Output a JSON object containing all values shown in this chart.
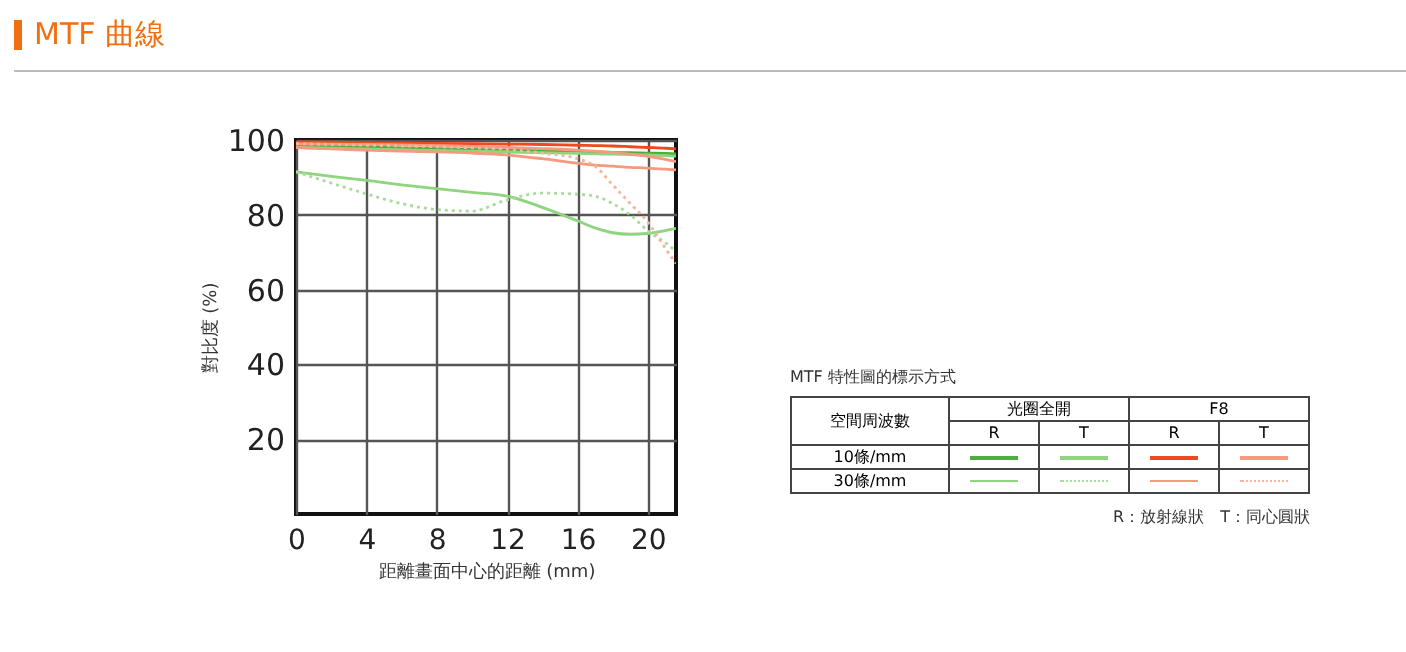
{
  "chart_data": {
    "type": "line",
    "title": "MTF 曲線",
    "xlabel": "距離畫面中心的距離 (mm)",
    "ylabel": "對比度 (%)",
    "x": [
      0,
      2,
      4,
      6,
      8,
      10,
      12,
      14,
      16,
      17,
      18,
      19,
      20,
      21,
      21.6
    ],
    "series": [
      {
        "color": "#4cae3c",
        "line_style": "solid",
        "values": [
          98.5,
          98.3,
          98.1,
          97.9,
          97.7,
          97.5,
          97.3,
          97.1,
          96.9,
          96.8,
          96.7,
          96.6,
          96.5,
          96.4,
          96.3
        ]
      },
      {
        "color": "#8fd47f",
        "line_style": "solid",
        "values": [
          98,
          97.8,
          97.6,
          97.4,
          97.2,
          97,
          96.8,
          96.6,
          96.4,
          96.3,
          96.2,
          96.1,
          96,
          95.8,
          95.7
        ]
      },
      {
        "color": "#ee4a1e",
        "line_style": "solid",
        "values": [
          99.5,
          99.4,
          99.3,
          99.2,
          99.1,
          99,
          98.9,
          98.8,
          98.6,
          98.5,
          98.4,
          98.2,
          98,
          97.8,
          97.6
        ]
      },
      {
        "color": "#f59a7e",
        "line_style": "solid",
        "values": [
          99,
          98.9,
          98.8,
          98.7,
          98.5,
          98.3,
          98,
          97.7,
          97.3,
          97,
          96.7,
          96.2,
          95.6,
          94.8,
          94.2
        ]
      },
      {
        "color": "#8fd47f",
        "line_style": "solid",
        "values": [
          91.5,
          90.3,
          89.2,
          88,
          87,
          86,
          85,
          82,
          78.4,
          76.5,
          75.2,
          74.8,
          75,
          75.8,
          76.4
        ]
      },
      {
        "color": "#a8dc9c",
        "line_style": "dotted",
        "values": [
          91.5,
          88.5,
          85.6,
          83,
          81.4,
          81,
          84,
          85.8,
          85.5,
          85,
          83,
          80,
          75.7,
          72.5,
          70.3
        ]
      },
      {
        "color": "#f59a7e",
        "line_style": "solid",
        "values": [
          98,
          97.6,
          97.3,
          97,
          96.8,
          96.5,
          96,
          95,
          93.8,
          93.3,
          93,
          92.7,
          92.5,
          92.2,
          92
        ]
      },
      {
        "color": "#f8b39c",
        "line_style": "dotted",
        "values": [
          99,
          98.8,
          98.6,
          98.4,
          98.2,
          97.9,
          97.5,
          96.5,
          95,
          93,
          88,
          83,
          78,
          71,
          67
        ]
      }
    ],
    "xlim": [
      0,
      21.6
    ],
    "ylim": [
      0,
      100
    ],
    "xticks": [
      0,
      4,
      8,
      12,
      16,
      20
    ],
    "yticks": [
      20,
      40,
      60,
      80,
      100
    ],
    "grid": true,
    "annotations": [
      "MTF 特性圖的標示方式",
      "空間周波數",
      "光圈全開",
      "F8",
      "R",
      "T",
      "R",
      "T",
      "10條/mm",
      "30條/mm",
      "R：放射線狀　T：同心圓狀"
    ]
  }
}
